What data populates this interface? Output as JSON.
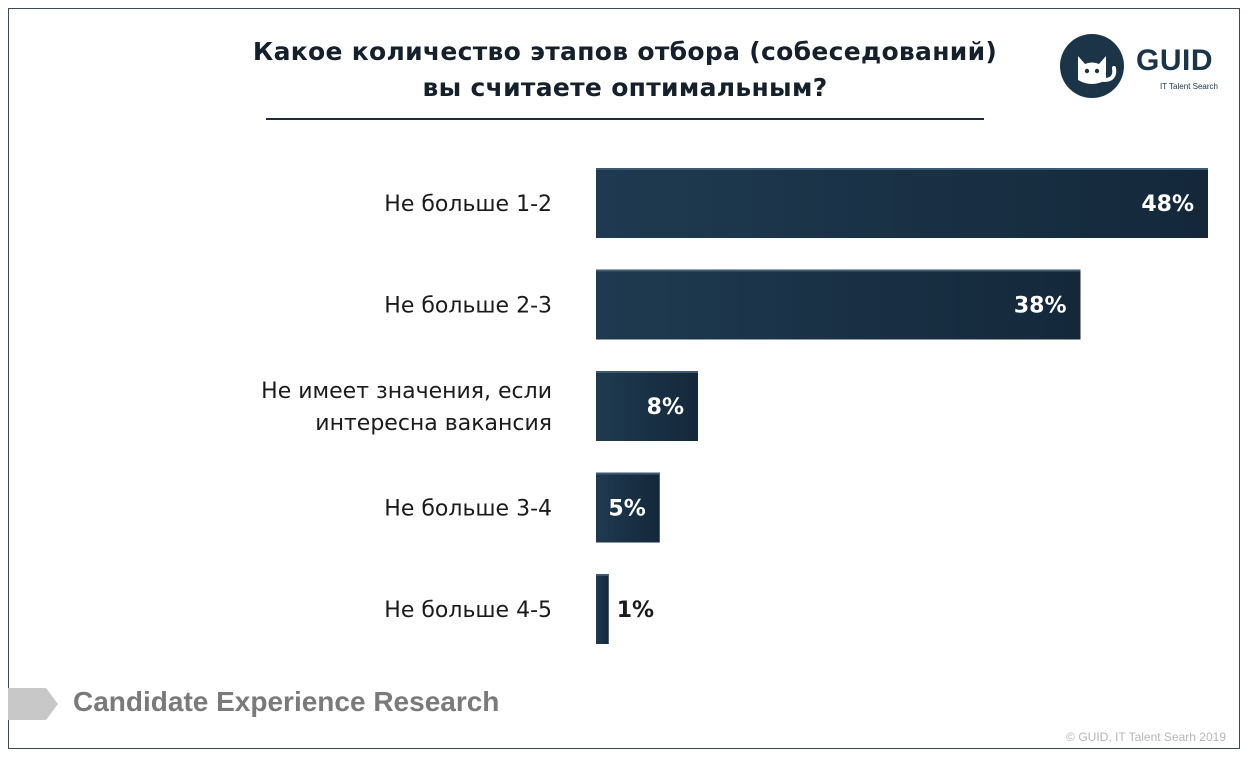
{
  "logo": {
    "word": "GUID",
    "tagline": "IT Talent Search"
  },
  "footer": {
    "research_title": "Candidate Experience Research",
    "copyright": "© GUID, IT Talent Searh 2019"
  },
  "colors": {
    "bar": "#14283a",
    "bar_light": "#1f3a50",
    "text": "#1b1b1b",
    "value_inside": "#ffffff",
    "value_outside": "#1b1b1b"
  },
  "chart_data": {
    "type": "bar",
    "orientation": "horizontal",
    "title": "Какое количество этапов отбора (собеседований) вы считаете оптимальным?",
    "title_lines": [
      "Какое количество этапов отбора (собеседований)",
      "вы считаете оптимальным?"
    ],
    "categories": [
      [
        "Не больше 1-2"
      ],
      [
        "Не больше 2-3"
      ],
      [
        "Не имеет значения, если",
        "интересна вакансия"
      ],
      [
        "Не больше 3-4"
      ],
      [
        "Не больше 4-5"
      ]
    ],
    "values": [
      48,
      38,
      8,
      5,
      1
    ],
    "value_labels": [
      "48%",
      "38%",
      "8%",
      "5%",
      "1%"
    ],
    "unit": "%",
    "xlim": [
      0,
      48
    ],
    "grid": false,
    "legend": "none"
  }
}
